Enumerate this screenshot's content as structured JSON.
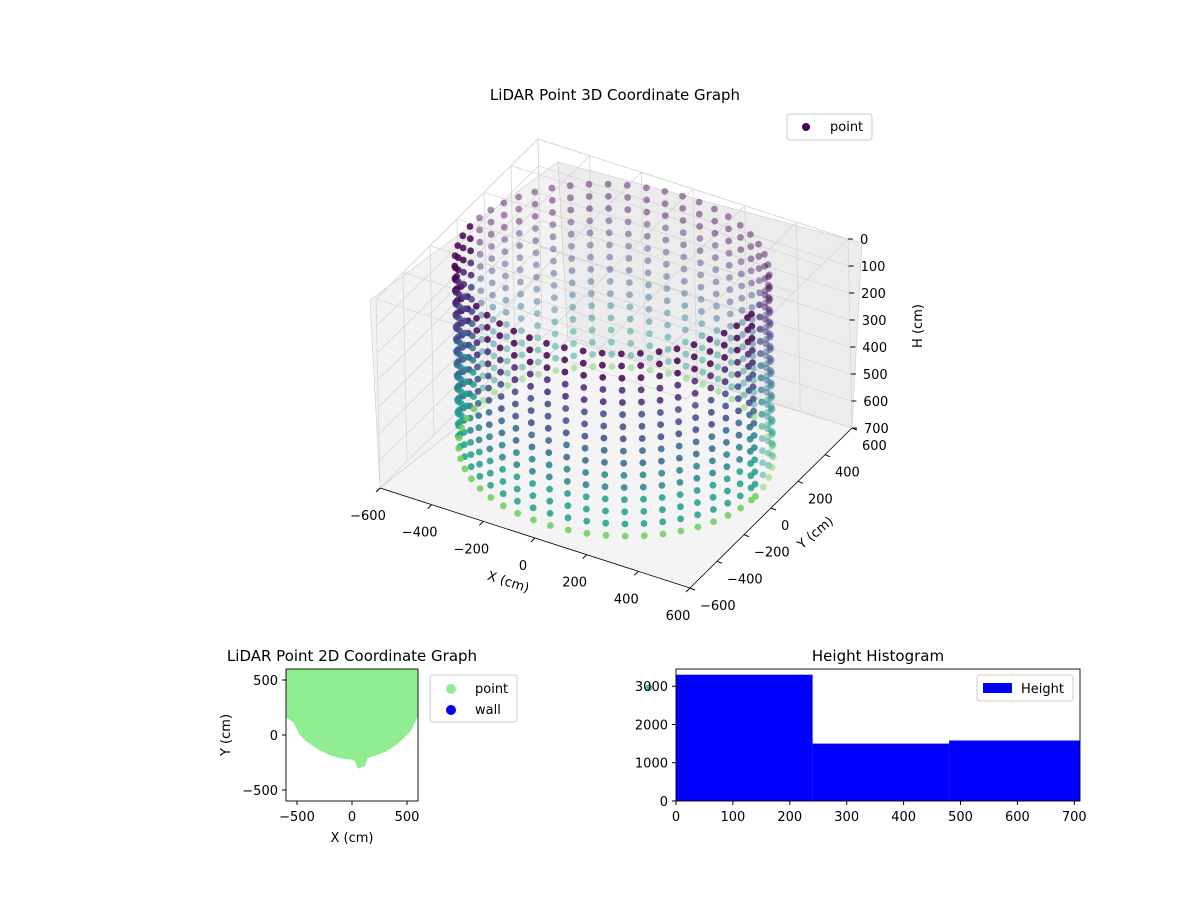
{
  "chart_data": [
    {
      "type": "scatter3d",
      "title": "LiDAR Point 3D Coordinate Graph",
      "xlabel": "X (cm)",
      "ylabel": "Y (cm)",
      "zlabel": "H (cm)",
      "xlim": [
        -600,
        600
      ],
      "ylim": [
        -600,
        600
      ],
      "zlim": [
        0,
        700
      ],
      "z_inverted": true,
      "x_ticks": [
        "−600",
        "−400",
        "−200",
        "0",
        "200",
        "400",
        "600"
      ],
      "y_ticks": [
        "−600",
        "−400",
        "−200",
        "0",
        "200",
        "400",
        "600"
      ],
      "z_ticks": [
        "0",
        "100",
        "200",
        "300",
        "400",
        "500",
        "600",
        "700"
      ],
      "legend": [
        "point"
      ],
      "legend_position": "top-right",
      "colormap": "viridis",
      "shape": "cylindrical wall of points, radius ~550 cm, heights 0-700 cm",
      "grid": true
    },
    {
      "type": "scatter",
      "title": "LiDAR Point 2D Coordinate Graph",
      "xlabel": "X (cm)",
      "ylabel": "Y (cm)",
      "xlim": [
        -600,
        600
      ],
      "ylim": [
        -600,
        600
      ],
      "x_ticks": [
        "−500",
        "0",
        "500"
      ],
      "y_ticks": [
        "−500",
        "0",
        "500"
      ],
      "series": [
        {
          "name": "point",
          "color": "#90ee90"
        },
        {
          "name": "wall",
          "color": "#0000ff"
        }
      ],
      "legend_position": "outside-right"
    },
    {
      "type": "bar",
      "title": "Height Histogram",
      "bins": [
        [
          0,
          240
        ],
        [
          240,
          480
        ],
        [
          480,
          710
        ]
      ],
      "values": [
        3300,
        1500,
        1580
      ],
      "xlim": [
        0,
        710
      ],
      "ylim": [
        0,
        3450
      ],
      "x_ticks": [
        "0",
        "100",
        "200",
        "300",
        "400",
        "500",
        "600",
        "700"
      ],
      "y_ticks": [
        "0",
        "1000",
        "2000",
        "3000"
      ],
      "series": [
        {
          "name": "Height",
          "color": "#0000ff"
        }
      ],
      "legend_position": "top-right"
    }
  ]
}
